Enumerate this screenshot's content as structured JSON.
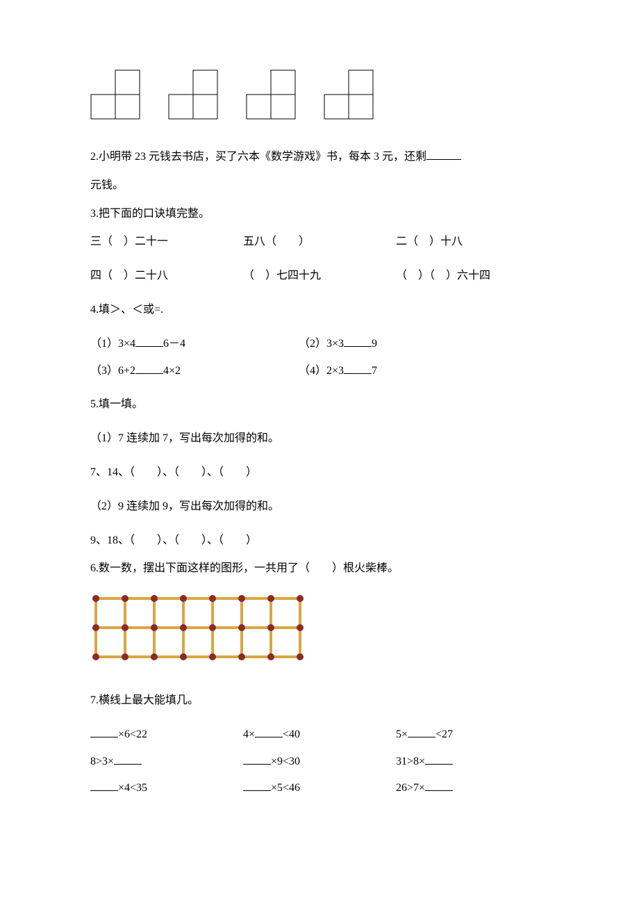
{
  "squares": {
    "count": 4,
    "strokeColor": "#000000",
    "fillColor": "#ffffff",
    "unit": 35,
    "strokeWidth": 1
  },
  "q2": {
    "text_a": "2.小明带 23 元钱去书店，买了六本《数学游戏》书，每本 3 元，还剩",
    "text_b": "元钱。"
  },
  "q3": {
    "title": "3.把下面的口诀填完整。",
    "r1c1a": "三（　）二十一",
    "r1c2a": "五八（　　）",
    "r1c3a": "二（　）十八",
    "r2c1a": "四（　）二十八",
    "r2c2a": "（　）七四十九",
    "r2c3a": "（　）（　）六十四"
  },
  "q4": {
    "title": "4.填＞、＜或=.",
    "p1a": "（1）3×4",
    "p1b": "6－4",
    "p2a": "（2）3×3",
    "p2b": "9",
    "p3a": "（3）6+2",
    "p3b": "4×2",
    "p4a": "（4）2×3",
    "p4b": "7"
  },
  "q5": {
    "title": "5.填一填。",
    "sub1": "（1）7 连续加 7，写出每次加得的和。",
    "seq1": "7、14、（　　）、（　　）、（　　）",
    "sub2": "（2）9 连续加 9，写出每次加得的和。",
    "seq2": "9、18、（　　）、（　　）、（　　）"
  },
  "q6": {
    "title": "6.数一数，摆出下面这样的图形，一共用了（　　）根火柴棒。",
    "matchstick": {
      "cols": 7,
      "rows": 2,
      "stickColor": "#d9a640",
      "headColor": "#8b2a2a",
      "cellSize": 42,
      "stickWidth": 4,
      "headRadius": 5
    }
  },
  "q7": {
    "title": "7.横线上最大能填几。",
    "rows": [
      {
        "c1a": "",
        "c1b": "×6<22",
        "c2a": "4×",
        "c2b": "<40",
        "c3a": "5×",
        "c3b": "<27"
      },
      {
        "c1a": "8>3×",
        "c1b": "",
        "c2a": "",
        "c2b": "×9<30",
        "c3a": "31>8×",
        "c3b": ""
      },
      {
        "c1a": "",
        "c1b": "×4<35",
        "c2a": "",
        "c2b": "×5<46",
        "c3a": "26>7×",
        "c3b": ""
      }
    ]
  }
}
